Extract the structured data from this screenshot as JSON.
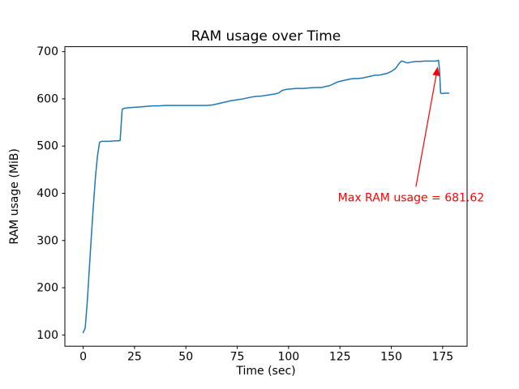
{
  "figure": {
    "background": "#ffffff"
  },
  "chart_data": {
    "type": "line",
    "title": "RAM usage over Time",
    "xlabel": "Time (sec)",
    "ylabel": "RAM usage (MiB)",
    "xlim": [
      -8.9,
      186.9
    ],
    "ylim": [
      76.2,
      710.4
    ],
    "x_ticks": [
      0,
      25,
      50,
      75,
      100,
      125,
      150,
      175
    ],
    "y_ticks": [
      100,
      200,
      300,
      400,
      500,
      600,
      700
    ],
    "grid": false,
    "legend": null,
    "line_color": "#1f77b4",
    "series": [
      {
        "name": "RAM usage",
        "points": [
          [
            0,
            105
          ],
          [
            1,
            115
          ],
          [
            2,
            170
          ],
          [
            3,
            240
          ],
          [
            4,
            310
          ],
          [
            5,
            375
          ],
          [
            6,
            435
          ],
          [
            7,
            480
          ],
          [
            8,
            508
          ],
          [
            9,
            510
          ],
          [
            11,
            510
          ],
          [
            13,
            510
          ],
          [
            15,
            511
          ],
          [
            17,
            511
          ],
          [
            18,
            512
          ],
          [
            19,
            578
          ],
          [
            20,
            580
          ],
          [
            22,
            581
          ],
          [
            25,
            582
          ],
          [
            28,
            583
          ],
          [
            31,
            584
          ],
          [
            34,
            585
          ],
          [
            37,
            585
          ],
          [
            40,
            586
          ],
          [
            44,
            586
          ],
          [
            48,
            586
          ],
          [
            52,
            586
          ],
          [
            56,
            586
          ],
          [
            60,
            586
          ],
          [
            63,
            587
          ],
          [
            66,
            590
          ],
          [
            69,
            593
          ],
          [
            72,
            596
          ],
          [
            75,
            598
          ],
          [
            78,
            600
          ],
          [
            81,
            603
          ],
          [
            84,
            605
          ],
          [
            87,
            606
          ],
          [
            90,
            608
          ],
          [
            93,
            610
          ],
          [
            95,
            612
          ],
          [
            97,
            618
          ],
          [
            99,
            620
          ],
          [
            101,
            621
          ],
          [
            104,
            622
          ],
          [
            107,
            622
          ],
          [
            110,
            623
          ],
          [
            113,
            624
          ],
          [
            116,
            624
          ],
          [
            118,
            626
          ],
          [
            120,
            628
          ],
          [
            122,
            632
          ],
          [
            124,
            636
          ],
          [
            126,
            638
          ],
          [
            128,
            640
          ],
          [
            130,
            642
          ],
          [
            132,
            643
          ],
          [
            134,
            643
          ],
          [
            136,
            644
          ],
          [
            138,
            646
          ],
          [
            140,
            648
          ],
          [
            142,
            650
          ],
          [
            144,
            650
          ],
          [
            146,
            652
          ],
          [
            148,
            654
          ],
          [
            150,
            658
          ],
          [
            152,
            664
          ],
          [
            153,
            670
          ],
          [
            154,
            676
          ],
          [
            155,
            680
          ],
          [
            156,
            679
          ],
          [
            157,
            677
          ],
          [
            158,
            676
          ],
          [
            159,
            677
          ],
          [
            160,
            678
          ],
          [
            162,
            679
          ],
          [
            164,
            679
          ],
          [
            166,
            680
          ],
          [
            168,
            680
          ],
          [
            170,
            680
          ],
          [
            171,
            680
          ],
          [
            172,
            680
          ],
          [
            173,
            681.62
          ],
          [
            173.5,
            660
          ],
          [
            174,
            612
          ],
          [
            175,
            611
          ],
          [
            176,
            612
          ],
          [
            177,
            612
          ],
          [
            178,
            612
          ]
        ]
      }
    ],
    "annotation": {
      "text": "Max RAM usage = 681.62",
      "value": 681.62,
      "color": "#ff0000",
      "text_xy": [
        124,
        383
      ],
      "arrow_start": [
        162,
        414
      ],
      "arrow_end": [
        172.6,
        668
      ]
    }
  }
}
